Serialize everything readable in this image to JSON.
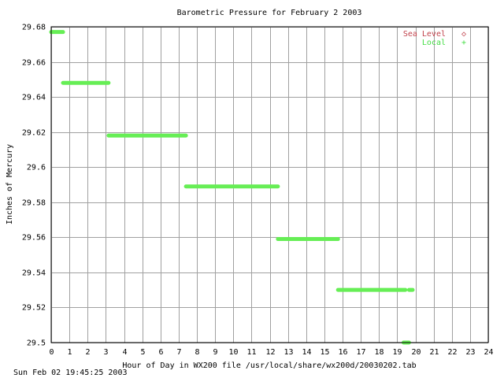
{
  "chart_data": {
    "type": "line",
    "title": "Barometric Pressure for February  2 2003",
    "xlabel": "Hour of Day in WX200 file /usr/local/share/wx200d/20030202.tab",
    "ylabel": "Inches of Mercury",
    "xlim": [
      0,
      24
    ],
    "ylim": [
      29.5,
      29.68
    ],
    "x_ticks": [
      "0",
      "1",
      "2",
      "3",
      "4",
      "5",
      "6",
      "7",
      "8",
      "9",
      "10",
      "11",
      "12",
      "13",
      "14",
      "15",
      "16",
      "17",
      "18",
      "19",
      "20",
      "21",
      "22",
      "23",
      "24"
    ],
    "y_ticks": [
      "29.5",
      "29.52",
      "29.54",
      "29.56",
      "29.58",
      "29.6",
      "29.62",
      "29.64",
      "29.66",
      "29.68"
    ],
    "grid": true,
    "legend_position": "top-right",
    "series": [
      {
        "name": "Sea Level",
        "color": "#c0404a",
        "marker": "◇",
        "segments": []
      },
      {
        "name": "Local",
        "color": "#66ee55",
        "marker": "+",
        "segments": [
          {
            "x": [
              0.0,
              0.65
            ],
            "y": 29.677
          },
          {
            "x": [
              0.65,
              3.15
            ],
            "y": 29.648
          },
          {
            "x": [
              3.15,
              7.4
            ],
            "y": 29.618
          },
          {
            "x": [
              7.4,
              12.45
            ],
            "y": 29.589
          },
          {
            "x": [
              12.45,
              15.75
            ],
            "y": 29.559
          },
          {
            "x": [
              15.75,
              19.45
            ],
            "y": 29.53
          },
          {
            "x": [
              19.65,
              19.85
            ],
            "y": 29.53
          },
          {
            "x": [
              19.35,
              19.65
            ],
            "y": 29.5
          }
        ]
      }
    ]
  },
  "footer": {
    "timestamp": "Sun Feb 02 19:45:25 2003"
  }
}
